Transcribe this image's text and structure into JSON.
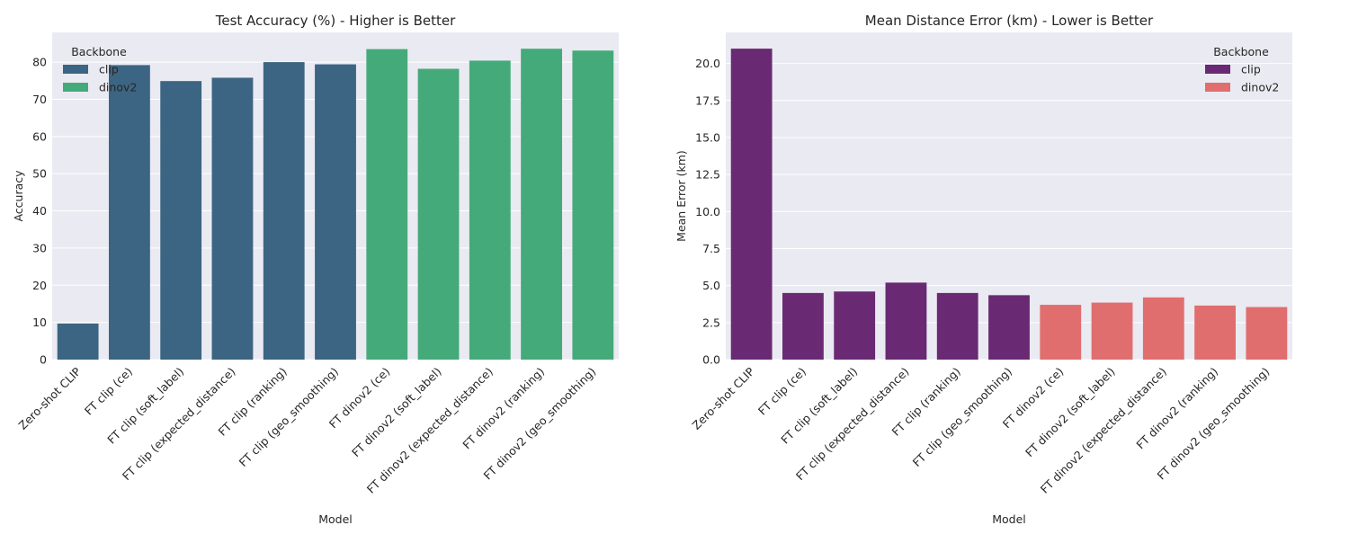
{
  "chart_data": [
    {
      "type": "bar",
      "title": "Test Accuracy (%) - Higher is Better",
      "xlabel": "Model",
      "ylabel": "Accuracy",
      "ylim": [
        0,
        88
      ],
      "yticks": [
        0,
        10,
        20,
        30,
        40,
        50,
        60,
        70,
        80
      ],
      "ytick_labels": [
        "0",
        "10",
        "20",
        "30",
        "40",
        "50",
        "60",
        "70",
        "80"
      ],
      "grid": true,
      "legend": {
        "title": "Backbone",
        "placement": "top-left",
        "entries": [
          {
            "label": "clip",
            "color": "#3b6582"
          },
          {
            "label": "dinov2",
            "color": "#45aa7a"
          }
        ]
      },
      "categories": [
        "Zero-shot CLIP",
        "FT clip (ce)",
        "FT clip (soft_label)",
        "FT clip (expected_distance)",
        "FT clip (ranking)",
        "FT clip (geo_smoothing)",
        "FT dinov2 (ce)",
        "FT dinov2 (soft_label)",
        "FT dinov2 (expected_distance)",
        "FT dinov2 (ranking)",
        "FT dinov2 (geo_smoothing)"
      ],
      "values": [
        9.7,
        79.2,
        74.9,
        75.8,
        80.0,
        79.4,
        83.5,
        78.2,
        80.4,
        83.6,
        83.1
      ],
      "bar_groups": [
        "clip",
        "clip",
        "clip",
        "clip",
        "clip",
        "clip",
        "dinov2",
        "dinov2",
        "dinov2",
        "dinov2",
        "dinov2"
      ]
    },
    {
      "type": "bar",
      "title": "Mean Distance Error (km) - Lower is Better",
      "xlabel": "Model",
      "ylabel": "Mean Error (km)",
      "ylim": [
        0,
        22.1
      ],
      "yticks": [
        0,
        2.5,
        5,
        7.5,
        10,
        12.5,
        15,
        17.5,
        20
      ],
      "ytick_labels": [
        "0.0",
        "2.5",
        "5.0",
        "7.5",
        "10.0",
        "12.5",
        "15.0",
        "17.5",
        "20.0"
      ],
      "grid": true,
      "legend": {
        "title": "Backbone",
        "placement": "top-right",
        "entries": [
          {
            "label": "clip",
            "color": "#692a73"
          },
          {
            "label": "dinov2",
            "color": "#e06e6e"
          }
        ]
      },
      "categories": [
        "Zero-shot CLIP",
        "FT clip (ce)",
        "FT clip (soft_label)",
        "FT clip (expected_distance)",
        "FT clip (ranking)",
        "FT clip (geo_smoothing)",
        "FT dinov2 (ce)",
        "FT dinov2 (soft_label)",
        "FT dinov2 (expected_distance)",
        "FT dinov2 (ranking)",
        "FT dinov2 (geo_smoothing)"
      ],
      "values": [
        21.0,
        4.5,
        4.6,
        5.2,
        4.5,
        4.35,
        3.7,
        3.85,
        4.2,
        3.65,
        3.55
      ],
      "bar_groups": [
        "clip",
        "clip",
        "clip",
        "clip",
        "clip",
        "clip",
        "dinov2",
        "dinov2",
        "dinov2",
        "dinov2",
        "dinov2"
      ]
    }
  ],
  "style": {
    "plot_background": "#eaeaf2",
    "grid_color": "#ffffff",
    "text_color": "#262626"
  }
}
